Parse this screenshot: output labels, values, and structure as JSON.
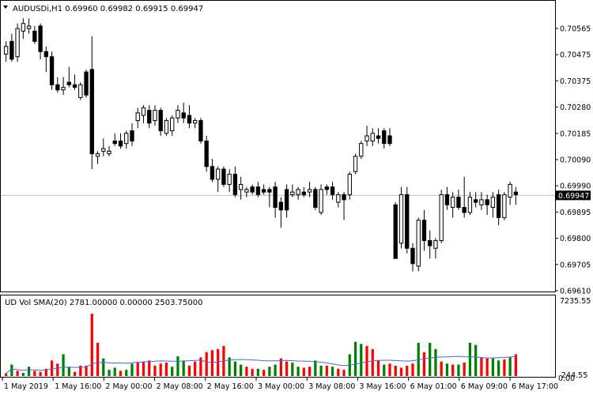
{
  "symbol_header": "AUDUSDi,H1  0.69960 0.69982 0.69915 0.69947",
  "indicator_header": "UD Vol SMA(20) 2781.00000 0.00000 2503.75000",
  "current_price_label": "0.69947",
  "colors": {
    "background": "#ffffff",
    "frame": "#000000",
    "current_line": "#c0c0c0",
    "bull_candle": "#ffffff",
    "bear_candle": "#000000",
    "highlight_wick": "#00b000",
    "vol_up": "#008000",
    "vol_down": "#ff0000",
    "sma_line": "#4169e1"
  },
  "chart_data": [
    {
      "type": "candlestick",
      "title": "AUDUSDi,H1",
      "price_axis_ticks": [
        "0.70565",
        "0.70475",
        "0.70375",
        "0.70280",
        "0.70185",
        "0.70090",
        "0.69990",
        "0.69895",
        "0.69800",
        "0.69705",
        "0.69610"
      ],
      "ylim": [
        0.6958,
        0.7065
      ],
      "current_price": 0.69947,
      "time_axis_labels": [
        "1 May 2019",
        "1 May 16:00",
        "2 May 00:00",
        "2 May 08:00",
        "2 May 16:00",
        "3 May 00:00",
        "3 May 08:00",
        "3 May 16:00",
        "6 May 01:00",
        "6 May 09:00",
        "6 May 17:00"
      ],
      "candles": [
        {
          "o": 0.705,
          "h": 0.7055,
          "l": 0.7047,
          "c": 0.7053
        },
        {
          "o": 0.7055,
          "h": 0.7058,
          "l": 0.7047,
          "c": 0.7048
        },
        {
          "o": 0.7049,
          "h": 0.7062,
          "l": 0.7047,
          "c": 0.706
        },
        {
          "o": 0.7059,
          "h": 0.7064,
          "l": 0.7056,
          "c": 0.7062
        },
        {
          "o": 0.706,
          "h": 0.7064,
          "l": 0.7058,
          "c": 0.7061
        },
        {
          "o": 0.7059,
          "h": 0.7061,
          "l": 0.7054,
          "c": 0.7055
        },
        {
          "o": 0.7061,
          "h": 0.7062,
          "l": 0.7048,
          "c": 0.7051
        },
        {
          "o": 0.7051,
          "h": 0.7053,
          "l": 0.7043,
          "c": 0.7049
        },
        {
          "o": 0.7049,
          "h": 0.7051,
          "l": 0.7036,
          "c": 0.7038
        },
        {
          "o": 0.7038,
          "h": 0.7041,
          "l": 0.7035,
          "c": 0.7036
        },
        {
          "o": 0.7036,
          "h": 0.7041,
          "l": 0.7034,
          "c": 0.7037
        },
        {
          "o": 0.7039,
          "h": 0.7045,
          "l": 0.7037,
          "c": 0.7038
        },
        {
          "o": 0.7038,
          "h": 0.7042,
          "l": 0.7036,
          "c": 0.7037
        },
        {
          "o": 0.7033,
          "h": 0.7039,
          "l": 0.7032,
          "c": 0.7038
        },
        {
          "o": 0.7043,
          "h": 0.7044,
          "l": 0.7033,
          "c": 0.7034
        },
        {
          "o": 0.7044,
          "h": 0.7057,
          "l": 0.7005,
          "c": 0.7011
        },
        {
          "o": 0.701,
          "h": 0.7012,
          "l": 0.7007,
          "c": 0.7011
        },
        {
          "o": 0.7012,
          "h": 0.7017,
          "l": 0.701,
          "c": 0.7013
        },
        {
          "o": 0.7011,
          "h": 0.7014,
          "l": 0.701,
          "c": 0.7012
        },
        {
          "o": 0.7016,
          "h": 0.7019,
          "l": 0.7014,
          "c": 0.7015
        },
        {
          "o": 0.7016,
          "h": 0.7019,
          "l": 0.7013,
          "c": 0.7014
        },
        {
          "o": 0.7015,
          "h": 0.702,
          "l": 0.7013,
          "c": 0.7019
        },
        {
          "o": 0.702,
          "h": 0.7023,
          "l": 0.7014,
          "c": 0.7016
        },
        {
          "o": 0.7024,
          "h": 0.7029,
          "l": 0.7021,
          "c": 0.7027
        },
        {
          "o": 0.7026,
          "h": 0.703,
          "l": 0.7023,
          "c": 0.7029
        },
        {
          "o": 0.7028,
          "h": 0.703,
          "l": 0.7021,
          "c": 0.7023
        },
        {
          "o": 0.7024,
          "h": 0.703,
          "l": 0.7022,
          "c": 0.7028
        },
        {
          "o": 0.7028,
          "h": 0.7029,
          "l": 0.7018,
          "c": 0.702
        },
        {
          "o": 0.7019,
          "h": 0.7025,
          "l": 0.7018,
          "c": 0.7024
        },
        {
          "o": 0.702,
          "h": 0.7026,
          "l": 0.7018,
          "c": 0.7025
        },
        {
          "o": 0.7025,
          "h": 0.703,
          "l": 0.7023,
          "c": 0.7028
        },
        {
          "o": 0.7027,
          "h": 0.7031,
          "l": 0.7023,
          "c": 0.7025
        },
        {
          "o": 0.7026,
          "h": 0.703,
          "l": 0.7021,
          "c": 0.7023
        },
        {
          "o": 0.7023,
          "h": 0.7025,
          "l": 0.7021,
          "c": 0.7024
        },
        {
          "o": 0.7024,
          "h": 0.7025,
          "l": 0.7015,
          "c": 0.7016
        },
        {
          "o": 0.7016,
          "h": 0.7018,
          "l": 0.7004,
          "c": 0.7006
        },
        {
          "o": 0.7006,
          "h": 0.7009,
          "l": 0.7,
          "c": 0.7001
        },
        {
          "o": 0.7001,
          "h": 0.7006,
          "l": 0.6996,
          "c": 0.7005
        },
        {
          "o": 0.7005,
          "h": 0.7006,
          "l": 0.6998,
          "c": 0.6999
        },
        {
          "o": 0.6999,
          "h": 0.7005,
          "l": 0.6996,
          "c": 0.7003
        },
        {
          "o": 0.7003,
          "h": 0.7006,
          "l": 0.6994,
          "c": 0.6995
        },
        {
          "o": 0.6997,
          "h": 0.7002,
          "l": 0.6993,
          "c": 0.6999
        },
        {
          "o": 0.6996,
          "h": 0.6998,
          "l": 0.6994,
          "c": 0.6997
        },
        {
          "o": 0.6998,
          "h": 0.6999,
          "l": 0.6995,
          "c": 0.6996
        },
        {
          "o": 0.6998,
          "h": 0.7,
          "l": 0.6994,
          "c": 0.6995
        },
        {
          "o": 0.6997,
          "h": 0.6999,
          "l": 0.6995,
          "c": 0.6996
        },
        {
          "o": 0.6997,
          "h": 0.6998,
          "l": 0.699,
          "c": 0.6996
        },
        {
          "o": 0.6998,
          "h": 0.7,
          "l": 0.6986,
          "c": 0.699
        },
        {
          "o": 0.6992,
          "h": 0.6994,
          "l": 0.6982,
          "c": 0.6989
        },
        {
          "o": 0.6997,
          "h": 0.6999,
          "l": 0.6986,
          "c": 0.6989
        },
        {
          "o": 0.6995,
          "h": 0.6999,
          "l": 0.6994,
          "c": 0.6996
        },
        {
          "o": 0.6995,
          "h": 0.6998,
          "l": 0.6993,
          "c": 0.6997
        },
        {
          "o": 0.6996,
          "h": 0.6998,
          "l": 0.6994,
          "c": 0.6995
        },
        {
          "o": 0.6996,
          "h": 0.7,
          "l": 0.6994,
          "c": 0.6997
        },
        {
          "o": 0.6997,
          "h": 0.6998,
          "l": 0.6989,
          "c": 0.699
        },
        {
          "o": 0.6988,
          "h": 0.6999,
          "l": 0.6987,
          "c": 0.6997
        },
        {
          "o": 0.6998,
          "h": 0.6999,
          "l": 0.6995,
          "c": 0.6997
        },
        {
          "o": 0.6998,
          "h": 0.7,
          "l": 0.6993,
          "c": 0.6995
        },
        {
          "o": 0.6992,
          "h": 0.6996,
          "l": 0.699,
          "c": 0.6995
        },
        {
          "o": 0.6995,
          "h": 0.6996,
          "l": 0.6985,
          "c": 0.6993
        },
        {
          "o": 0.6995,
          "h": 0.7004,
          "l": 0.6993,
          "c": 0.7003
        },
        {
          "o": 0.7004,
          "h": 0.7011,
          "l": 0.7003,
          "c": 0.701
        },
        {
          "o": 0.701,
          "h": 0.7016,
          "l": 0.7009,
          "c": 0.7015
        },
        {
          "o": 0.7016,
          "h": 0.7022,
          "l": 0.7014,
          "c": 0.7018
        },
        {
          "o": 0.7016,
          "h": 0.7021,
          "l": 0.7014,
          "c": 0.7019
        },
        {
          "o": 0.7018,
          "h": 0.7021,
          "l": 0.7015,
          "c": 0.7017
        },
        {
          "o": 0.702,
          "h": 0.7021,
          "l": 0.7013,
          "c": 0.7015
        },
        {
          "o": 0.7018,
          "h": 0.7021,
          "l": 0.7014,
          "c": 0.7015
        },
        {
          "o": 0.6991,
          "h": 0.6992,
          "l": 0.697,
          "c": 0.697
        },
        {
          "o": 0.6976,
          "h": 0.6998,
          "l": 0.6974,
          "c": 0.6995
        },
        {
          "o": 0.6995,
          "h": 0.6998,
          "l": 0.6972,
          "c": 0.6974
        },
        {
          "o": 0.6974,
          "h": 0.6976,
          "l": 0.6965,
          "c": 0.6968
        },
        {
          "o": 0.6967,
          "h": 0.6986,
          "l": 0.6965,
          "c": 0.6985
        },
        {
          "o": 0.6985,
          "h": 0.6989,
          "l": 0.6973,
          "c": 0.6977
        },
        {
          "o": 0.6977,
          "h": 0.6981,
          "l": 0.697,
          "c": 0.6975
        },
        {
          "o": 0.6974,
          "h": 0.6978,
          "l": 0.697,
          "c": 0.6977
        },
        {
          "o": 0.6977,
          "h": 0.6997,
          "l": 0.6976,
          "c": 0.6995
        },
        {
          "o": 0.6995,
          "h": 0.6998,
          "l": 0.6989,
          "c": 0.6991
        },
        {
          "o": 0.699,
          "h": 0.6996,
          "l": 0.6986,
          "c": 0.6994
        },
        {
          "o": 0.6994,
          "h": 0.6997,
          "l": 0.6989,
          "c": 0.699
        },
        {
          "o": 0.699,
          "h": 0.7002,
          "l": 0.6986,
          "c": 0.6988
        },
        {
          "o": 0.6988,
          "h": 0.6996,
          "l": 0.6987,
          "c": 0.6994
        },
        {
          "o": 0.6993,
          "h": 0.6996,
          "l": 0.699,
          "c": 0.6992
        },
        {
          "o": 0.6991,
          "h": 0.6996,
          "l": 0.6989,
          "c": 0.6993
        },
        {
          "o": 0.6993,
          "h": 0.6995,
          "l": 0.6987,
          "c": 0.6991
        },
        {
          "o": 0.699,
          "h": 0.6996,
          "l": 0.6986,
          "c": 0.6994
        },
        {
          "o": 0.6995,
          "h": 0.6997,
          "l": 0.6983,
          "c": 0.6986
        },
        {
          "o": 0.6986,
          "h": 0.6996,
          "l": 0.6985,
          "c": 0.6995
        },
        {
          "o": 0.6994,
          "h": 0.7,
          "l": 0.6991,
          "c": 0.6999
        },
        {
          "o": 0.6996,
          "h": 0.6998,
          "l": 0.6991,
          "c": 0.6995
        }
      ]
    },
    {
      "type": "bar",
      "title": "UD Vol SMA(20)",
      "values_axis_ticks": [
        "7235.55",
        "244.55"
      ],
      "bottom_label": "0.00",
      "ylim": [
        0,
        7235.55
      ],
      "volume_up_down": [
        [
          "d",
          250
        ],
        [
          "g",
          1100
        ],
        [
          "d",
          500
        ],
        [
          "g",
          300
        ],
        [
          "g",
          900
        ],
        [
          "d",
          500
        ],
        [
          "d",
          400
        ],
        [
          "d",
          700
        ],
        [
          "d",
          1500
        ],
        [
          "d",
          1200
        ],
        [
          "g",
          2100
        ],
        [
          "g",
          900
        ],
        [
          "d",
          400
        ],
        [
          "d",
          1000
        ],
        [
          "d",
          1000
        ],
        [
          "d",
          6000
        ],
        [
          "d",
          3200
        ],
        [
          "g",
          1700
        ],
        [
          "g",
          600
        ],
        [
          "g",
          800
        ],
        [
          "d",
          500
        ],
        [
          "g",
          600
        ],
        [
          "g",
          1200
        ],
        [
          "d",
          1300
        ],
        [
          "d",
          1400
        ],
        [
          "d",
          1500
        ],
        [
          "d",
          1000
        ],
        [
          "d",
          1200
        ],
        [
          "d",
          1300
        ],
        [
          "g",
          900
        ],
        [
          "g",
          1900
        ],
        [
          "g",
          1500
        ],
        [
          "d",
          1000
        ],
        [
          "d",
          1400
        ],
        [
          "d",
          1800
        ],
        [
          "d",
          2300
        ],
        [
          "d",
          2500
        ],
        [
          "d",
          2600
        ],
        [
          "d",
          2900
        ],
        [
          "g",
          1800
        ],
        [
          "g",
          1400
        ],
        [
          "g",
          1100
        ],
        [
          "d",
          900
        ],
        [
          "d",
          700
        ],
        [
          "g",
          700
        ],
        [
          "d",
          600
        ],
        [
          "g",
          900
        ],
        [
          "g",
          1100
        ],
        [
          "d",
          1700
        ],
        [
          "d",
          1400
        ],
        [
          "g",
          1300
        ],
        [
          "g",
          900
        ],
        [
          "d",
          800
        ],
        [
          "d",
          900
        ],
        [
          "g",
          1500
        ],
        [
          "g",
          1000
        ],
        [
          "d",
          1000
        ],
        [
          "g",
          900
        ],
        [
          "d",
          700
        ],
        [
          "d",
          600
        ],
        [
          "g",
          2100
        ],
        [
          "g",
          3300
        ],
        [
          "g",
          3100
        ],
        [
          "d",
          2900
        ],
        [
          "d",
          2600
        ],
        [
          "d",
          1500
        ],
        [
          "g",
          1100
        ],
        [
          "d",
          1200
        ],
        [
          "d",
          1000
        ],
        [
          "d",
          800
        ],
        [
          "d",
          1000
        ],
        [
          "d",
          1200
        ],
        [
          "g",
          3200
        ],
        [
          "d",
          2300
        ],
        [
          "g",
          3200
        ],
        [
          "g",
          2600
        ],
        [
          "d",
          1400
        ],
        [
          "g",
          1200
        ],
        [
          "d",
          1100
        ],
        [
          "g",
          1100
        ],
        [
          "d",
          1300
        ],
        [
          "g",
          3200
        ],
        [
          "g",
          3000
        ],
        [
          "d",
          1800
        ],
        [
          "d",
          1700
        ],
        [
          "g",
          1700
        ],
        [
          "g",
          1500
        ],
        [
          "d",
          1600
        ],
        [
          "g",
          1800
        ],
        [
          "d",
          2100
        ]
      ]
    }
  ]
}
